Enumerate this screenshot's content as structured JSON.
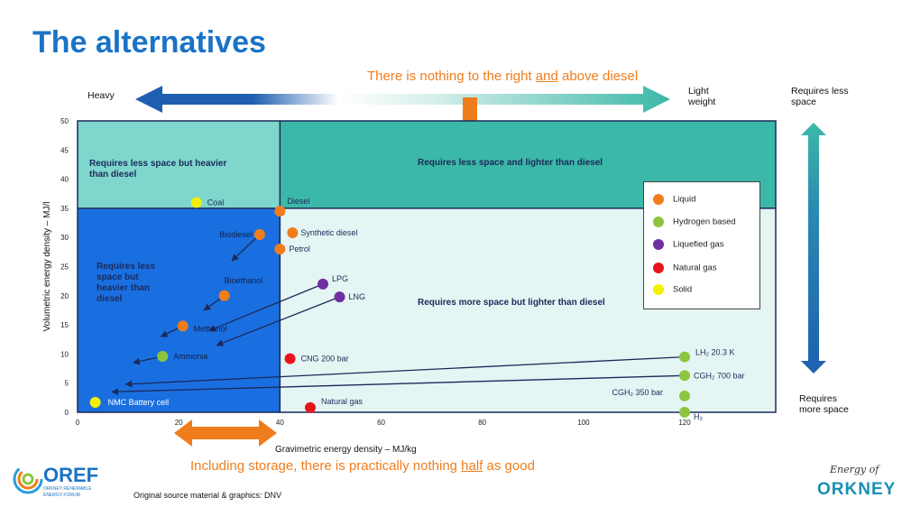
{
  "title": "The alternatives",
  "top_note": "There is nothing to the right and above diesel",
  "top_note_parts": {
    "a": "There is nothing to the right ",
    "u": "and",
    "b": " above diesel"
  },
  "bottom_note_parts": {
    "a": "Including storage, there is practically nothing ",
    "u": "half",
    "b": " as good"
  },
  "heavy_label": "Heavy",
  "light_label_1": "Light",
  "light_label_2": "weight",
  "req_less_1": "Requires less",
  "req_less_2": "space",
  "req_more_1": "Requires",
  "req_more_2": "more space",
  "source": "Original source material & graphics: DNV",
  "oref": {
    "name": "OREF",
    "sub1": "ORKNEY RENEWABLE",
    "sub2": "ENERGY FORUM"
  },
  "eoo": {
    "top": "Energy of",
    "bottom": "ORKNEY"
  },
  "colors": {
    "liquid": "#f07d1c",
    "hydrogen": "#8cc63f",
    "liquefied_gas": "#7030a0",
    "natural_gas": "#e8141b",
    "solid": "#f5f000",
    "region_blue": "#1a6fe0",
    "region_teal_light": "#7fd6cc",
    "region_teal": "#3cb8a8",
    "region_pale": "#e4f5f3"
  },
  "legend": [
    {
      "label": "Liquid",
      "color": "#f07d1c"
    },
    {
      "label": "Hydrogen based",
      "color": "#8cc63f"
    },
    {
      "label": "Liquefied gas",
      "color": "#7030a0"
    },
    {
      "label": "Natural gas",
      "color": "#e8141b"
    },
    {
      "label": "Solid",
      "color": "#f5f000"
    }
  ],
  "chart_data": {
    "type": "scatter",
    "xlabel": "Gravimetric energy density – MJ/kg",
    "ylabel": "Volumetric energy density – MJ/l",
    "xlim": [
      0,
      138
    ],
    "ylim": [
      0,
      50
    ],
    "xticks": [
      0,
      20,
      40,
      60,
      80,
      100,
      120
    ],
    "yticks": [
      0,
      5,
      10,
      15,
      20,
      25,
      30,
      35,
      40,
      45,
      50
    ],
    "regions": [
      {
        "label": "Requires less space but heavier than diesel"
      },
      {
        "label": "Requires less space and lighter than diesel"
      },
      {
        "label": "Requires less space but heavier than diesel"
      },
      {
        "label": "Requires more space but lighter than diesel"
      }
    ],
    "points": [
      {
        "name": "Coal",
        "x": 23.5,
        "y": 36,
        "category": "Solid"
      },
      {
        "name": "Diesel",
        "x": 40,
        "y": 34.5,
        "category": "Liquid"
      },
      {
        "name": "Biodiesel",
        "x": 36,
        "y": 30.5,
        "category": "Liquid"
      },
      {
        "name": "Synthetic diesel",
        "x": 42.5,
        "y": 30.8,
        "category": "Liquid"
      },
      {
        "name": "Petrol",
        "x": 40,
        "y": 28,
        "category": "Liquid"
      },
      {
        "name": "Bioethanol",
        "x": 29,
        "y": 20,
        "category": "Liquid"
      },
      {
        "name": "Methanol",
        "x": 20.8,
        "y": 14.8,
        "category": "Liquid"
      },
      {
        "name": "LPG",
        "x": 48.5,
        "y": 22,
        "category": "Liquefied gas"
      },
      {
        "name": "LNG",
        "x": 51.8,
        "y": 19.8,
        "category": "Liquefied gas"
      },
      {
        "name": "Ammonia",
        "x": 16.8,
        "y": 9.6,
        "category": "Hydrogen based"
      },
      {
        "name": "CNG 200 bar",
        "x": 42,
        "y": 9.2,
        "category": "Natural gas"
      },
      {
        "name": "Natural gas",
        "x": 46,
        "y": 0.8,
        "category": "Natural gas"
      },
      {
        "name": "NMC Battery cell",
        "x": 3.5,
        "y": 1.7,
        "category": "Solid"
      },
      {
        "name": "LH₂ 20.3 K",
        "x": 120,
        "y": 9.5,
        "category": "Hydrogen based"
      },
      {
        "name": "CGH₂ 700 bar",
        "x": 120,
        "y": 6.3,
        "category": "Hydrogen based"
      },
      {
        "name": "CGH₂ 350 bar",
        "x": 120,
        "y": 2.8,
        "category": "Hydrogen based"
      },
      {
        "name": "H₂",
        "x": 120,
        "y": 0,
        "category": "Hydrogen based"
      }
    ],
    "arrows": [
      {
        "from": [
          36,
          30.5
        ],
        "to": [
          30.5,
          26
        ]
      },
      {
        "from": [
          29,
          20
        ],
        "to": [
          25,
          17.5
        ]
      },
      {
        "from": [
          20.8,
          14.8
        ],
        "to": [
          16.5,
          13
        ]
      },
      {
        "from": [
          16.8,
          9.6
        ],
        "to": [
          11,
          8.5
        ]
      },
      {
        "from": [
          48.5,
          22
        ],
        "to": [
          26,
          14
        ]
      },
      {
        "from": [
          51.8,
          19.8
        ],
        "to": [
          27.5,
          11.5
        ]
      },
      {
        "from": [
          120,
          9.5
        ],
        "to": [
          9.5,
          4.8
        ]
      },
      {
        "from": [
          120,
          6.3
        ],
        "to": [
          6.8,
          3.5
        ]
      }
    ],
    "legend_position": "right"
  }
}
